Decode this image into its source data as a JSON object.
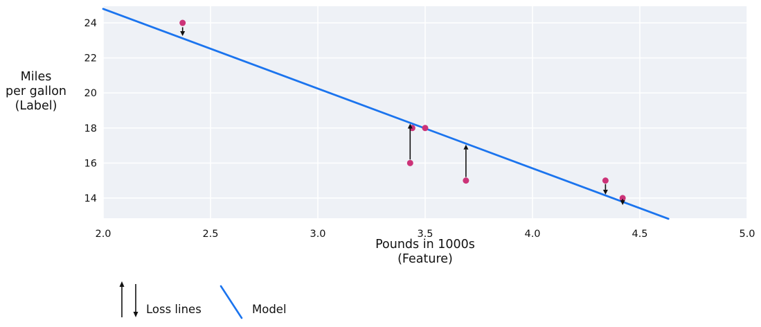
{
  "chart_data": {
    "type": "scatter",
    "title": "",
    "xlabel": "Pounds in 1000s\n(Feature)",
    "ylabel": "Miles\nper gallon\n(Label)",
    "xlim": [
      2.0,
      5.0
    ],
    "ylim": [
      12.85,
      24.95
    ],
    "grid": true,
    "legend_position": "bottom-left",
    "xticks": [
      {
        "v": 2.0,
        "label": "2.0"
      },
      {
        "v": 2.5,
        "label": "2.5"
      },
      {
        "v": 3.0,
        "label": "3.0"
      },
      {
        "v": 3.5,
        "label": "3.5"
      },
      {
        "v": 4.0,
        "label": "4.0"
      },
      {
        "v": 4.5,
        "label": "4.5"
      },
      {
        "v": 5.0,
        "label": "5.0"
      }
    ],
    "yticks": [
      {
        "v": 14,
        "label": "14"
      },
      {
        "v": 16,
        "label": "16"
      },
      {
        "v": 18,
        "label": "18"
      },
      {
        "v": 20,
        "label": "20"
      },
      {
        "v": 22,
        "label": "22"
      },
      {
        "v": 24,
        "label": "24"
      }
    ],
    "points": [
      {
        "x": 2.37,
        "y": 24
      },
      {
        "x": 3.43,
        "y": 16
      },
      {
        "x": 3.44,
        "y": 18
      },
      {
        "x": 3.5,
        "y": 18
      },
      {
        "x": 3.69,
        "y": 15
      },
      {
        "x": 4.34,
        "y": 15
      },
      {
        "x": 4.42,
        "y": 14
      }
    ],
    "model_line": {
      "slope": -4.55,
      "intercept": 33.9,
      "x_start": 2.0,
      "x_end": 4.633
    },
    "loss_arrows": [
      {
        "x": 2.37,
        "from": 23.75,
        "to": 23.25,
        "direction": "down"
      },
      {
        "x": 3.43,
        "from": 16.2,
        "to": 18.25,
        "direction": "up"
      },
      {
        "x": 3.69,
        "from": 15.2,
        "to": 17.05,
        "direction": "up"
      },
      {
        "x": 4.34,
        "from": 14.8,
        "to": 14.2,
        "direction": "down"
      },
      {
        "x": 4.42,
        "from": 13.95,
        "to": 13.6,
        "direction": "down"
      }
    ],
    "legend": [
      {
        "label": "Loss lines",
        "symbol": "up-down-arrows"
      },
      {
        "label": "Model",
        "symbol": "blue-line"
      }
    ],
    "colors": {
      "model_line": "#1b74ee",
      "points": "#cc3378",
      "arrows": "#111111",
      "plot_background": "#eef1f6",
      "grid": "#ffffff",
      "text": "#111111"
    }
  }
}
